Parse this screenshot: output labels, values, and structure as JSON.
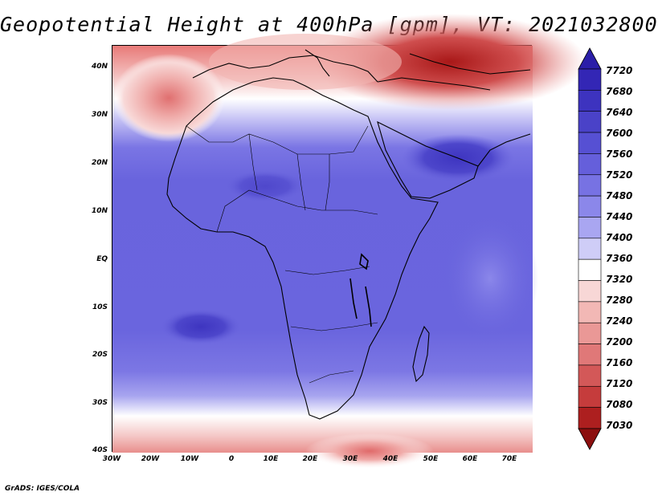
{
  "title": "Geopotential Height at 400hPa [gpm], VT: 2021032800",
  "credit": "GrADS: IGES/COLA",
  "lat_ticks": [
    "40N",
    "30N",
    "20N",
    "10N",
    "EQ",
    "10S",
    "20S",
    "30S",
    "40S"
  ],
  "lon_ticks": [
    "30W",
    "20W",
    "10W",
    "0",
    "10E",
    "20E",
    "30E",
    "40E",
    "50E",
    "60E",
    "70E"
  ],
  "colorbar": {
    "levels": [
      "7720",
      "7680",
      "7640",
      "7600",
      "7560",
      "7520",
      "7480",
      "7440",
      "7400",
      "7360",
      "7320",
      "7280",
      "7240",
      "7200",
      "7160",
      "7120",
      "7080",
      "7030"
    ],
    "colors": [
      "#2b1ea8",
      "#3326b5",
      "#3d33bf",
      "#4a42c8",
      "#5650d3",
      "#655fdb",
      "#7772e3",
      "#8b87ea",
      "#a9a6f1",
      "#cfcdf7",
      "#ffffff",
      "#f8d7d6",
      "#f2b8b5",
      "#ea9896",
      "#e07878",
      "#d35858",
      "#c53c3c",
      "#ad1f1f",
      "#8c0f0f"
    ]
  }
}
